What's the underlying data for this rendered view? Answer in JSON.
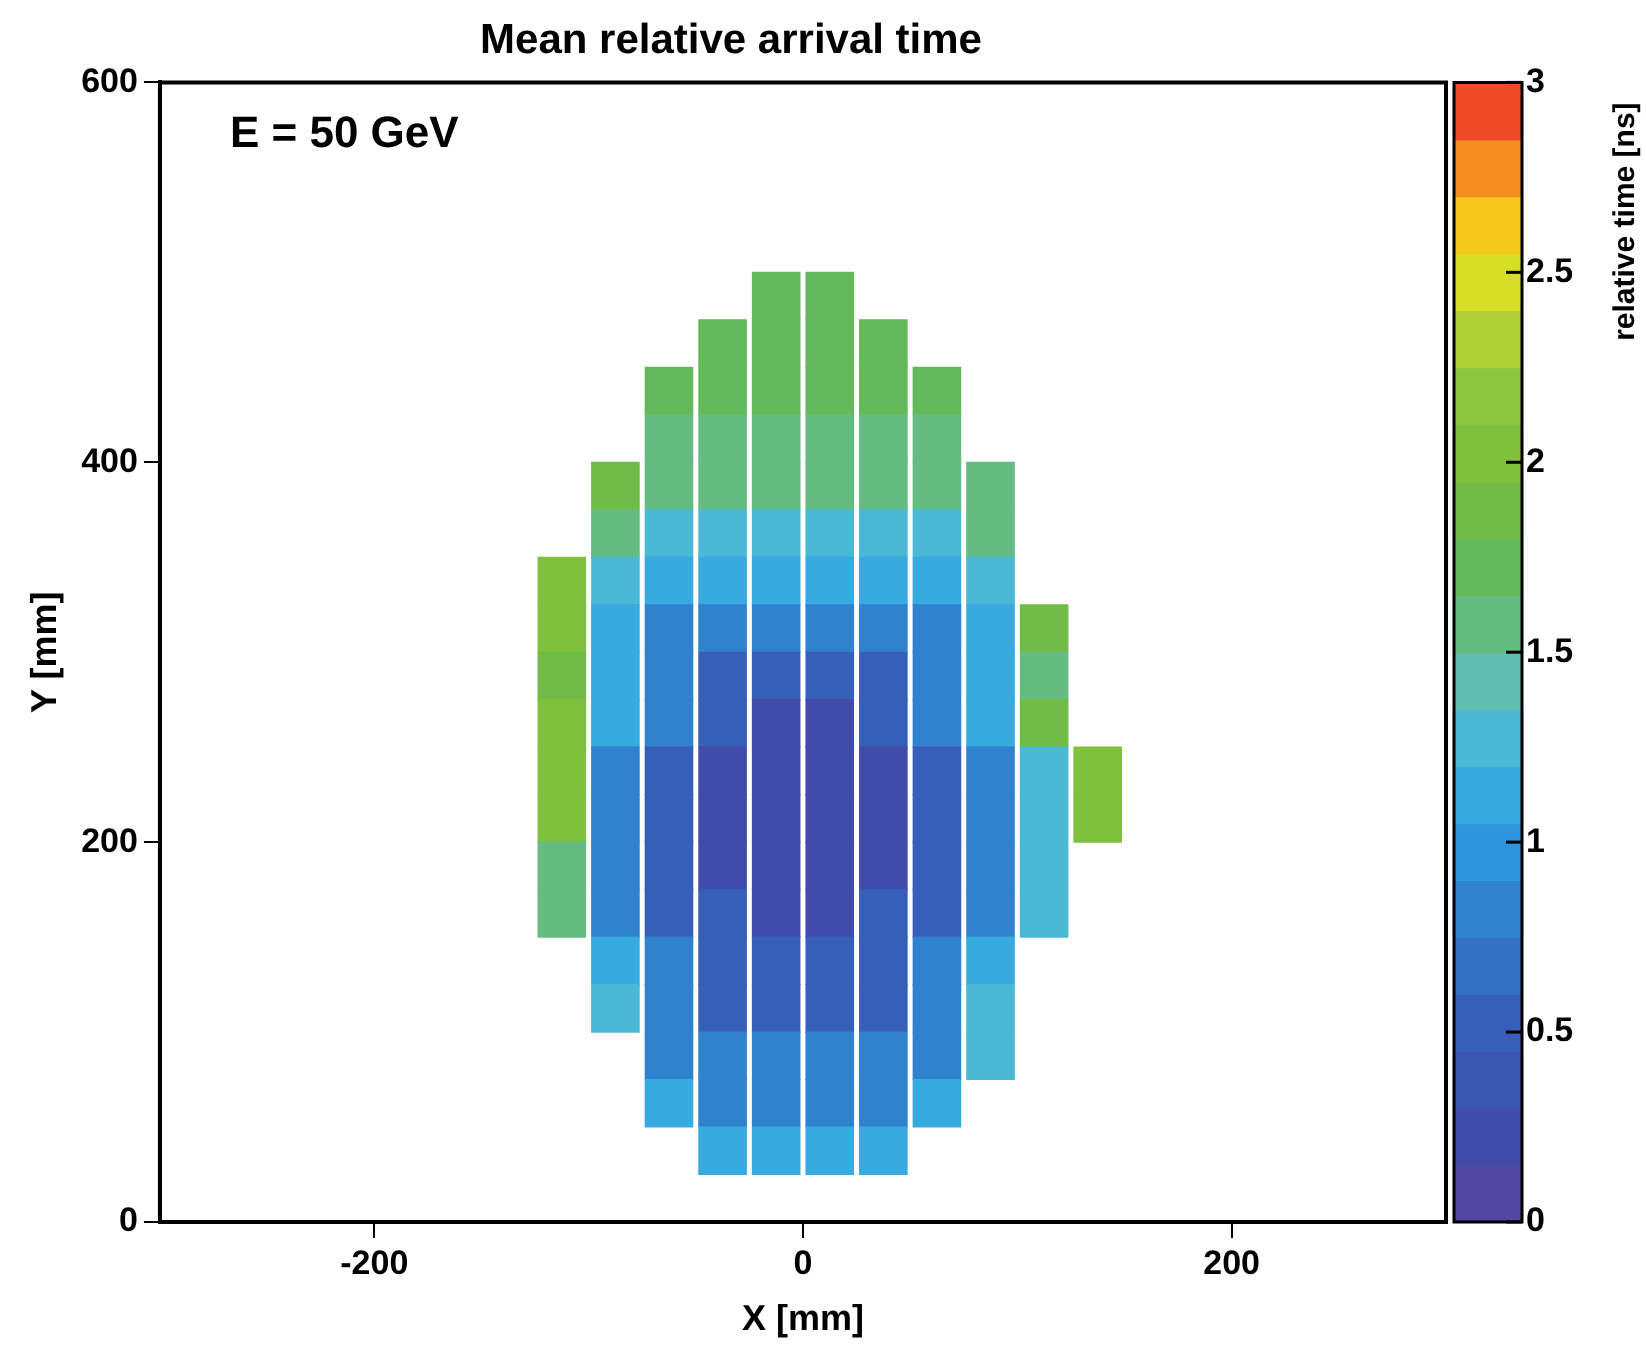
{
  "chart_data": {
    "type": "scatter",
    "title": "Mean relative arrival time",
    "xlabel": "X [mm]",
    "ylabel": "Y [mm]",
    "clabel": "relative time [ns]",
    "annotations": [
      "E = 50 GeV"
    ],
    "marker": "square",
    "x": [
      -12.5,
      12.5,
      -37.5,
      -12.5,
      12.5,
      37.5,
      -62.5,
      -37.5,
      -12.5,
      12.5,
      37.5,
      62.5,
      -62.5,
      -37.5,
      -12.5,
      12.5,
      37.5,
      62.5,
      -87.5,
      -62.5,
      -37.5,
      -12.5,
      12.5,
      37.5,
      62.5,
      87.5,
      -87.5,
      -62.5,
      -37.5,
      -12.5,
      12.5,
      37.5,
      62.5,
      87.5,
      -112.5,
      -87.5,
      -62.5,
      -37.5,
      -12.5,
      12.5,
      37.5,
      62.5,
      87.5,
      -112.5,
      -87.5,
      -62.5,
      -37.5,
      -12.5,
      12.5,
      37.5,
      62.5,
      87.5,
      112.5,
      -112.5,
      -87.5,
      -62.5,
      -37.5,
      -12.5,
      12.5,
      37.5,
      62.5,
      87.5,
      112.5,
      -112.5,
      -87.5,
      -62.5,
      -37.5,
      -12.5,
      12.5,
      37.5,
      62.5,
      87.5,
      112.5,
      -112.5,
      -87.5,
      -62.5,
      -37.5,
      -12.5,
      12.5,
      37.5,
      62.5,
      87.5,
      112.5,
      137.5,
      -112.5,
      -87.5,
      -62.5,
      -37.5,
      -12.5,
      12.5,
      37.5,
      62.5,
      87.5,
      112.5,
      137.5,
      -112.5,
      -87.5,
      -62.5,
      -37.5,
      -12.5,
      12.5,
      37.5,
      62.5,
      87.5,
      112.5,
      -112.5,
      -87.5,
      -62.5,
      -37.5,
      -12.5,
      12.5,
      37.5,
      62.5,
      87.5,
      112.5,
      -87.5,
      -62.5,
      -37.5,
      -12.5,
      12.5,
      37.5,
      62.5,
      87.5,
      -87.5,
      -62.5,
      -37.5,
      -12.5,
      12.5,
      37.5,
      62.5,
      87.5,
      -62.5,
      -37.5,
      -12.5,
      12.5,
      37.5,
      62.5,
      87.5,
      -62.5,
      -37.5,
      -12.5,
      12.5,
      37.5,
      62.5,
      -37.5,
      -12.5,
      12.5,
      37.5
    ],
    "values": [
      487.5,
      487.5,
      462.5,
      462.5,
      462.5,
      462.5,
      437.5,
      437.5,
      437.5,
      437.5,
      437.5,
      437.5,
      412.5,
      412.5,
      412.5,
      412.5,
      412.5,
      412.5,
      387.5,
      387.5,
      387.5,
      387.5,
      387.5,
      387.5,
      387.5,
      387.5,
      362.5,
      362.5,
      362.5,
      362.5,
      362.5,
      362.5,
      362.5,
      362.5,
      337.5,
      337.5,
      337.5,
      337.5,
      337.5,
      337.5,
      337.5,
      337.5,
      337.5,
      312.5,
      312.5,
      312.5,
      312.5,
      312.5,
      312.5,
      312.5,
      312.5,
      312.5,
      312.5,
      287.5,
      287.5,
      287.5,
      287.5,
      287.5,
      287.5,
      287.5,
      287.5,
      287.5,
      287.5,
      262.5,
      262.5,
      262.5,
      262.5,
      262.5,
      262.5,
      262.5,
      262.5,
      262.5,
      262.5,
      237.5,
      237.5,
      237.5,
      237.5,
      237.5,
      237.5,
      237.5,
      237.5,
      237.5,
      237.5,
      237.5,
      212.5,
      212.5,
      212.5,
      212.5,
      212.5,
      212.5,
      212.5,
      212.5,
      212.5,
      212.5,
      212.5,
      187.5,
      187.5,
      187.5,
      187.5,
      187.5,
      187.5,
      187.5,
      187.5,
      187.5,
      187.5,
      162.5,
      162.5,
      162.5,
      162.5,
      162.5,
      162.5,
      162.5,
      162.5,
      162.5,
      162.5,
      137.5,
      137.5,
      137.5,
      137.5,
      137.5,
      137.5,
      137.5,
      137.5,
      112.5,
      112.5,
      112.5,
      112.5,
      112.5,
      112.5,
      112.5,
      112.5,
      87.5,
      87.5,
      87.5,
      87.5,
      87.5,
      87.5,
      87.5,
      62.5,
      62.5,
      62.5,
      62.5,
      62.5,
      62.5,
      37.5,
      37.5,
      37.5,
      37.5
    ],
    "cvalues": [
      1.75,
      1.75,
      1.75,
      1.75,
      1.75,
      1.75,
      1.75,
      1.75,
      1.75,
      1.75,
      1.75,
      1.75,
      1.6,
      1.6,
      1.6,
      1.6,
      1.6,
      1.6,
      1.9,
      1.6,
      1.6,
      1.6,
      1.6,
      1.6,
      1.6,
      1.6,
      1.6,
      1.25,
      1.25,
      1.25,
      1.25,
      1.25,
      1.25,
      1.6,
      2.0,
      1.25,
      1.05,
      1.05,
      1.05,
      1.05,
      1.05,
      1.05,
      1.25,
      2.0,
      1.05,
      0.8,
      0.8,
      0.8,
      0.8,
      0.8,
      0.8,
      1.05,
      1.8,
      1.9,
      1.05,
      0.8,
      0.55,
      0.55,
      0.55,
      0.55,
      0.8,
      1.05,
      1.6,
      2.0,
      1.05,
      0.8,
      0.55,
      0.3,
      0.3,
      0.55,
      0.8,
      1.05,
      1.8,
      2.0,
      0.8,
      0.55,
      0.3,
      0.3,
      0.3,
      0.3,
      0.55,
      0.8,
      1.25,
      2.0,
      2.0,
      0.8,
      0.55,
      0.3,
      0.3,
      0.3,
      0.3,
      0.55,
      0.8,
      1.25,
      2.0,
      1.6,
      0.8,
      0.55,
      0.3,
      0.3,
      0.3,
      0.3,
      0.55,
      0.8,
      1.25,
      1.6,
      0.8,
      0.55,
      0.55,
      0.3,
      0.3,
      0.55,
      0.55,
      0.8,
      1.25,
      1.05,
      0.8,
      0.55,
      0.55,
      0.55,
      0.55,
      0.8,
      1.05,
      1.25,
      0.8,
      0.55,
      0.55,
      0.55,
      0.55,
      0.8,
      1.25,
      0.8,
      0.8,
      0.8,
      0.8,
      0.8,
      0.8,
      1.25,
      1.05,
      0.8,
      0.8,
      0.8,
      0.8,
      1.05,
      1.05,
      1.05,
      1.05,
      1.05
    ],
    "xlim": [
      -300,
      300
    ],
    "xticks": [
      -200,
      0,
      200
    ],
    "ylim": [
      0,
      600
    ],
    "yticks": [
      0,
      200,
      400,
      600
    ],
    "clim": [
      0,
      3
    ],
    "cticks": [
      0,
      0.5,
      1,
      1.5,
      2,
      2.5,
      3
    ]
  }
}
